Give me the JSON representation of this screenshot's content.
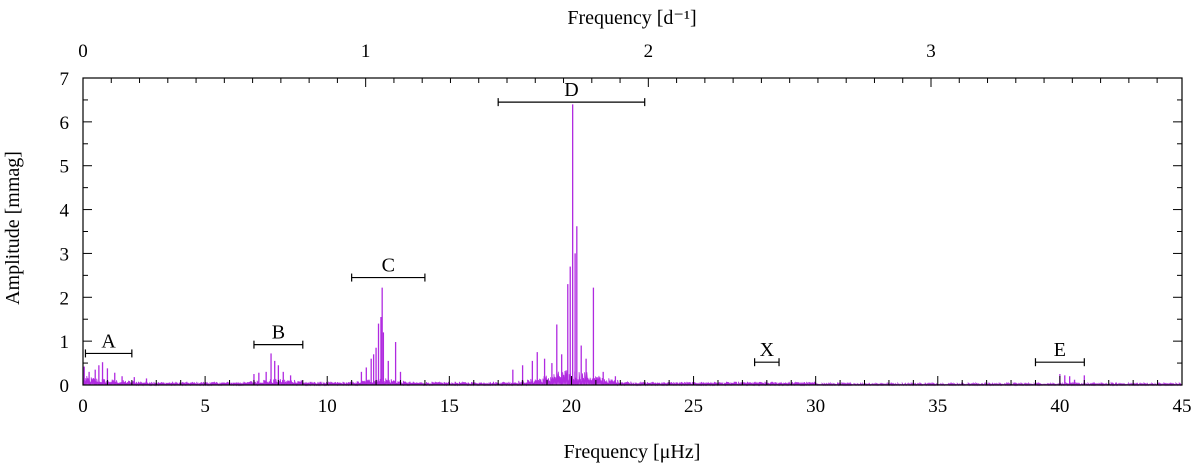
{
  "chart_data": {
    "type": "line",
    "title": "",
    "xlabel": "Frequency [μHz]",
    "x2label": "Frequency [d⁻¹]",
    "ylabel": "Amplitude [mmag]",
    "xlim": [
      0,
      45
    ],
    "ylim": [
      0,
      7
    ],
    "x2lim": [
      0,
      3.888
    ],
    "grid": false,
    "line_color": "#b02ae0",
    "xticks": [
      0,
      5,
      10,
      15,
      20,
      25,
      30,
      35,
      40,
      45
    ],
    "yticks": [
      0,
      1,
      2,
      3,
      4,
      5,
      6,
      7
    ],
    "x2ticks": [
      0,
      1,
      2,
      3
    ],
    "peaks": [
      {
        "x": 0.05,
        "y": 0.42
      },
      {
        "x": 0.25,
        "y": 0.3
      },
      {
        "x": 0.5,
        "y": 0.35
      },
      {
        "x": 0.65,
        "y": 0.45
      },
      {
        "x": 0.8,
        "y": 0.52
      },
      {
        "x": 1.0,
        "y": 0.38
      },
      {
        "x": 1.3,
        "y": 0.28
      },
      {
        "x": 1.6,
        "y": 0.2
      },
      {
        "x": 2.1,
        "y": 0.18
      },
      {
        "x": 2.6,
        "y": 0.15
      },
      {
        "x": 7.0,
        "y": 0.25
      },
      {
        "x": 7.2,
        "y": 0.28
      },
      {
        "x": 7.5,
        "y": 0.3
      },
      {
        "x": 7.7,
        "y": 0.72
      },
      {
        "x": 7.85,
        "y": 0.55
      },
      {
        "x": 8.0,
        "y": 0.45
      },
      {
        "x": 8.2,
        "y": 0.3
      },
      {
        "x": 8.5,
        "y": 0.22
      },
      {
        "x": 11.4,
        "y": 0.3
      },
      {
        "x": 11.6,
        "y": 0.4
      },
      {
        "x": 11.8,
        "y": 0.6
      },
      {
        "x": 11.9,
        "y": 0.7
      },
      {
        "x": 12.0,
        "y": 0.85
      },
      {
        "x": 12.1,
        "y": 1.4
      },
      {
        "x": 12.2,
        "y": 1.55
      },
      {
        "x": 12.25,
        "y": 2.22
      },
      {
        "x": 12.3,
        "y": 1.2
      },
      {
        "x": 12.5,
        "y": 0.55
      },
      {
        "x": 12.8,
        "y": 0.98
      },
      {
        "x": 13.0,
        "y": 0.3
      },
      {
        "x": 17.6,
        "y": 0.35
      },
      {
        "x": 18.0,
        "y": 0.45
      },
      {
        "x": 18.4,
        "y": 0.55
      },
      {
        "x": 18.6,
        "y": 0.75
      },
      {
        "x": 18.9,
        "y": 0.6
      },
      {
        "x": 19.2,
        "y": 0.5
      },
      {
        "x": 19.4,
        "y": 1.38
      },
      {
        "x": 19.6,
        "y": 0.7
      },
      {
        "x": 19.85,
        "y": 2.3
      },
      {
        "x": 19.95,
        "y": 2.7
      },
      {
        "x": 20.05,
        "y": 6.4
      },
      {
        "x": 20.15,
        "y": 3.0
      },
      {
        "x": 20.22,
        "y": 3.62
      },
      {
        "x": 20.4,
        "y": 0.9
      },
      {
        "x": 20.6,
        "y": 0.6
      },
      {
        "x": 20.9,
        "y": 2.22
      },
      {
        "x": 21.3,
        "y": 0.3
      },
      {
        "x": 21.8,
        "y": 0.2
      },
      {
        "x": 27.5,
        "y": 0.06
      },
      {
        "x": 28.0,
        "y": 0.08
      },
      {
        "x": 40.0,
        "y": 0.25
      },
      {
        "x": 40.2,
        "y": 0.22
      },
      {
        "x": 40.4,
        "y": 0.2
      },
      {
        "x": 40.6,
        "y": 0.12
      },
      {
        "x": 41.0,
        "y": 0.22
      }
    ],
    "groups": [
      {
        "label": "A",
        "x_start": 0.1,
        "x_end": 2.0,
        "y": 0.72
      },
      {
        "label": "B",
        "x_start": 7.0,
        "x_end": 9.0,
        "y": 0.92
      },
      {
        "label": "C",
        "x_start": 11.0,
        "x_end": 14.0,
        "y": 2.45
      },
      {
        "label": "D",
        "x_start": 17.0,
        "x_end": 23.0,
        "y": 6.45
      },
      {
        "label": "X",
        "x_start": 27.5,
        "x_end": 28.5,
        "y": 0.52
      },
      {
        "label": "E",
        "x_start": 39.0,
        "x_end": 41.0,
        "y": 0.52
      }
    ]
  }
}
